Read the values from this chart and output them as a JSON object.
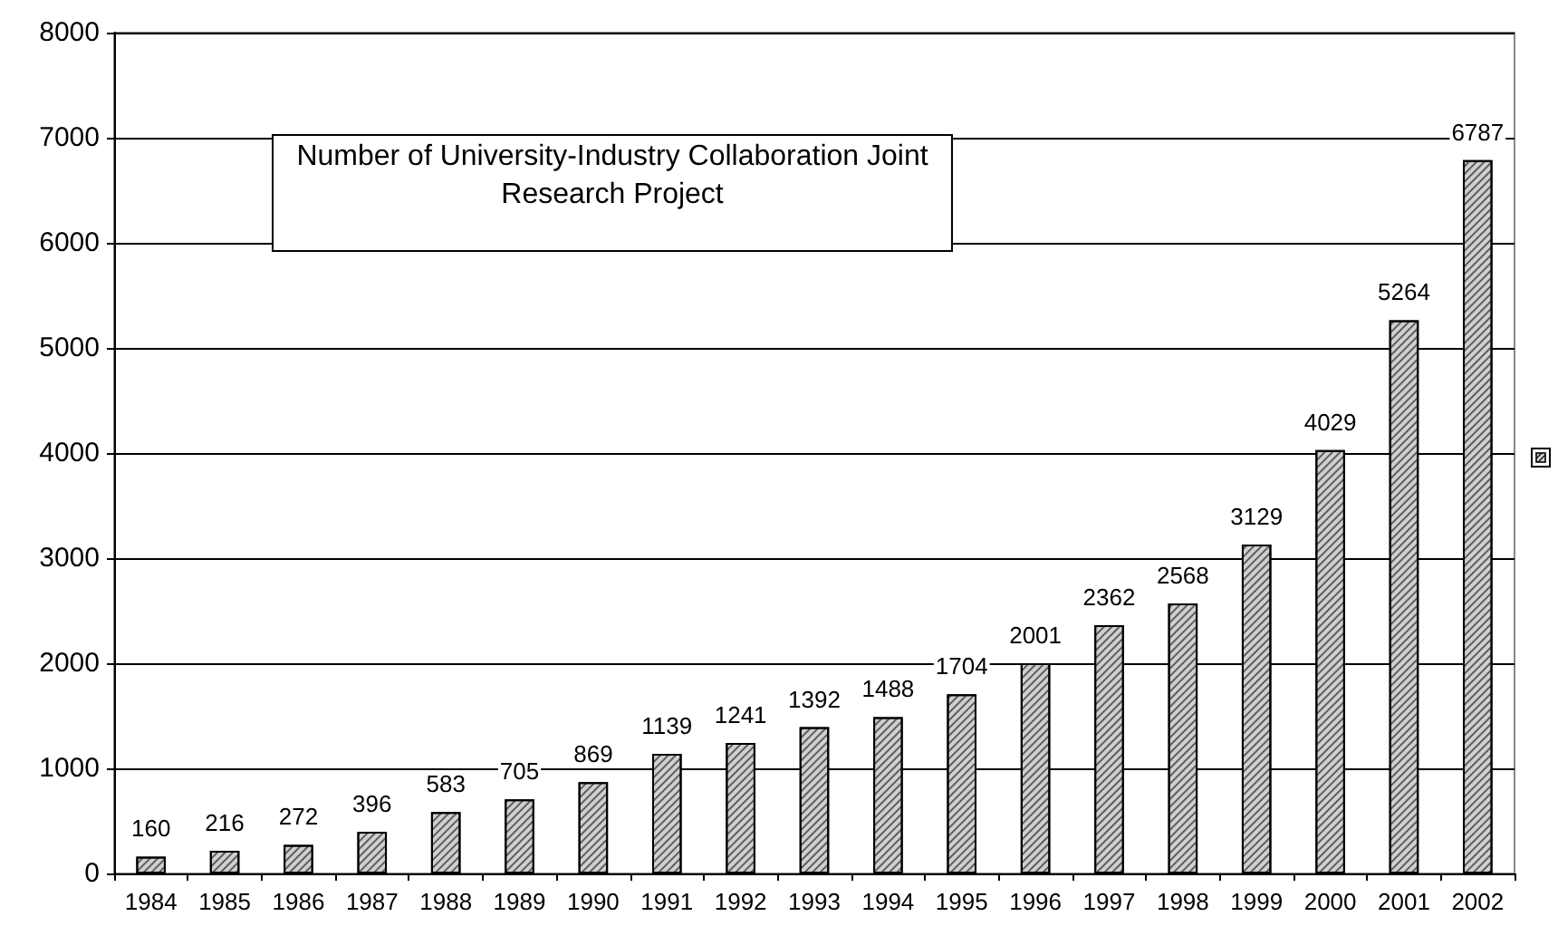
{
  "chart_data": {
    "type": "bar",
    "title": "Number of University-Industry Collaboration Joint Research Project",
    "categories": [
      "1984",
      "1985",
      "1986",
      "1987",
      "1988",
      "1989",
      "1990",
      "1991",
      "1992",
      "1993",
      "1994",
      "1995",
      "1996",
      "1997",
      "1998",
      "1999",
      "2000",
      "2001",
      "2002"
    ],
    "values": [
      160,
      216,
      272,
      396,
      583,
      705,
      869,
      1139,
      1241,
      1392,
      1488,
      1704,
      2001,
      2362,
      2568,
      3129,
      4029,
      5264,
      6787
    ],
    "color": "#d0d0d0",
    "ylim": [
      0,
      8000
    ],
    "yticks": [
      0,
      1000,
      2000,
      3000,
      4000,
      5000,
      6000,
      7000,
      8000
    ],
    "grid": "y",
    "data_labels": true
  }
}
